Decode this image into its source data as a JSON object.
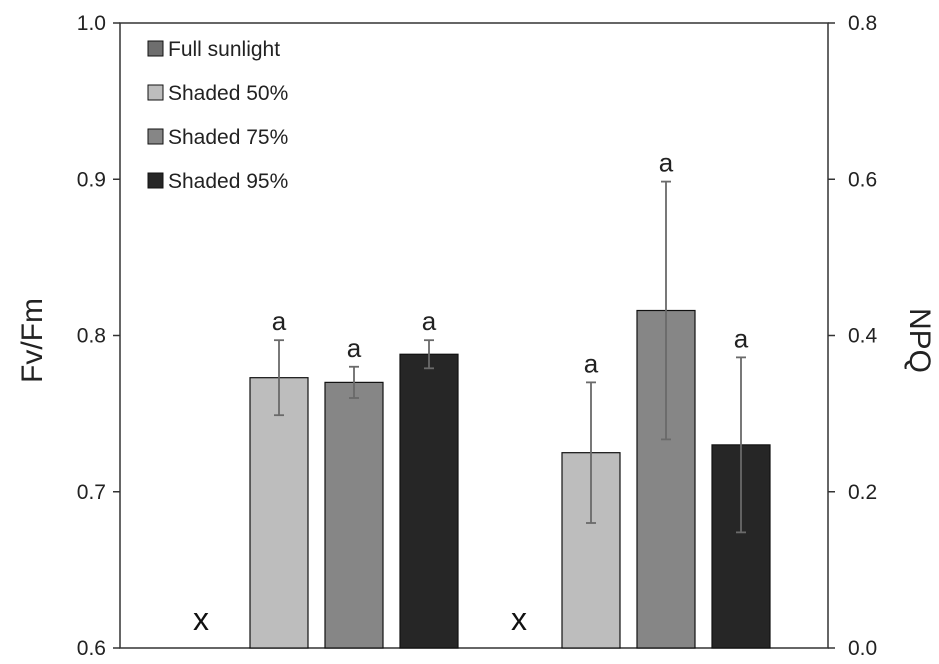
{
  "chart_data": {
    "type": "bar",
    "groups": [
      {
        "name": "",
        "axis": "left",
        "missing_marker": "x",
        "bars": [
          {
            "series": "Shaded 50%",
            "value": 0.773,
            "error": 0.024,
            "label": "a"
          },
          {
            "series": "Shaded 75%",
            "value": 0.77,
            "error": 0.01,
            "label": "a"
          },
          {
            "series": "Shaded 95%",
            "value": 0.788,
            "error": 0.009,
            "label": "a"
          }
        ]
      },
      {
        "name": "",
        "axis": "right",
        "missing_marker": "x",
        "bars": [
          {
            "series": "Shaded 50%",
            "value": 0.25,
            "error": 0.09,
            "label": "a"
          },
          {
            "series": "Shaded 75%",
            "value": 0.432,
            "error": 0.165,
            "label": "a"
          },
          {
            "series": "Shaded 95%",
            "value": 0.26,
            "error": 0.112,
            "label": "a"
          }
        ]
      }
    ],
    "series": [
      {
        "name": "Full sunlight",
        "color": "#6e6e6e"
      },
      {
        "name": "Shaded 50%",
        "color": "#bdbdbd"
      },
      {
        "name": "Shaded 75%",
        "color": "#868686"
      },
      {
        "name": "Shaded 95%",
        "color": "#262626"
      }
    ],
    "y_left": {
      "label": "Fv/Fm",
      "lim": [
        0.6,
        1.0
      ],
      "ticks": [
        0.6,
        0.7,
        0.8,
        0.9,
        1.0
      ],
      "tick_labels": [
        "0.6",
        "0.7",
        "0.8",
        "0.9",
        "1.0"
      ]
    },
    "y_right": {
      "label": "NPQ",
      "lim": [
        0.0,
        0.8
      ],
      "ticks": [
        0.0,
        0.2,
        0.4,
        0.6,
        0.8
      ],
      "tick_labels": [
        "0.0",
        "0.2",
        "0.4",
        "0.6",
        "0.8"
      ]
    },
    "legend": {
      "position": "top-left"
    },
    "grid": false,
    "error_bar_color": "#6a6a6a"
  }
}
